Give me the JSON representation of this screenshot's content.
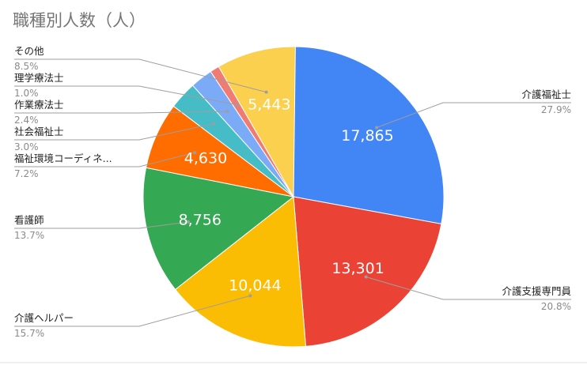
{
  "chart_data": {
    "type": "pie",
    "title": "職種別人数（人）",
    "slices": [
      {
        "label": "介護福祉士",
        "value": 17865,
        "percent": "27.9%",
        "color": "#4285F4"
      },
      {
        "label": "介護支援専門員",
        "value": 13301,
        "percent": "20.8%",
        "color": "#EA4335"
      },
      {
        "label": "介護ヘルパー",
        "value": 10044,
        "percent": "15.7%",
        "color": "#FBBC04"
      },
      {
        "label": "看護師",
        "value": 8756,
        "percent": "13.7%",
        "color": "#34A853"
      },
      {
        "label": "福祉環境コーディネ...",
        "value": 4630,
        "percent": "7.2%",
        "color": "#FF6D01"
      },
      {
        "label": "社会福祉士",
        "value": null,
        "percent": "3.0%",
        "color": "#46BDC6"
      },
      {
        "label": "作業療法士",
        "value": null,
        "percent": "2.4%",
        "color": "#7BAAF7"
      },
      {
        "label": "理学療法士",
        "value": null,
        "percent": "1.0%",
        "color": "#F07B72"
      },
      {
        "label": "その他",
        "value": 5443,
        "percent": "8.5%",
        "color": "#FCD04F"
      }
    ],
    "value_labels": [
      "17,865",
      "13,301",
      "10,044",
      "8,756",
      "4,630",
      "",
      "",
      "",
      "5,443"
    ],
    "legend": "none"
  }
}
